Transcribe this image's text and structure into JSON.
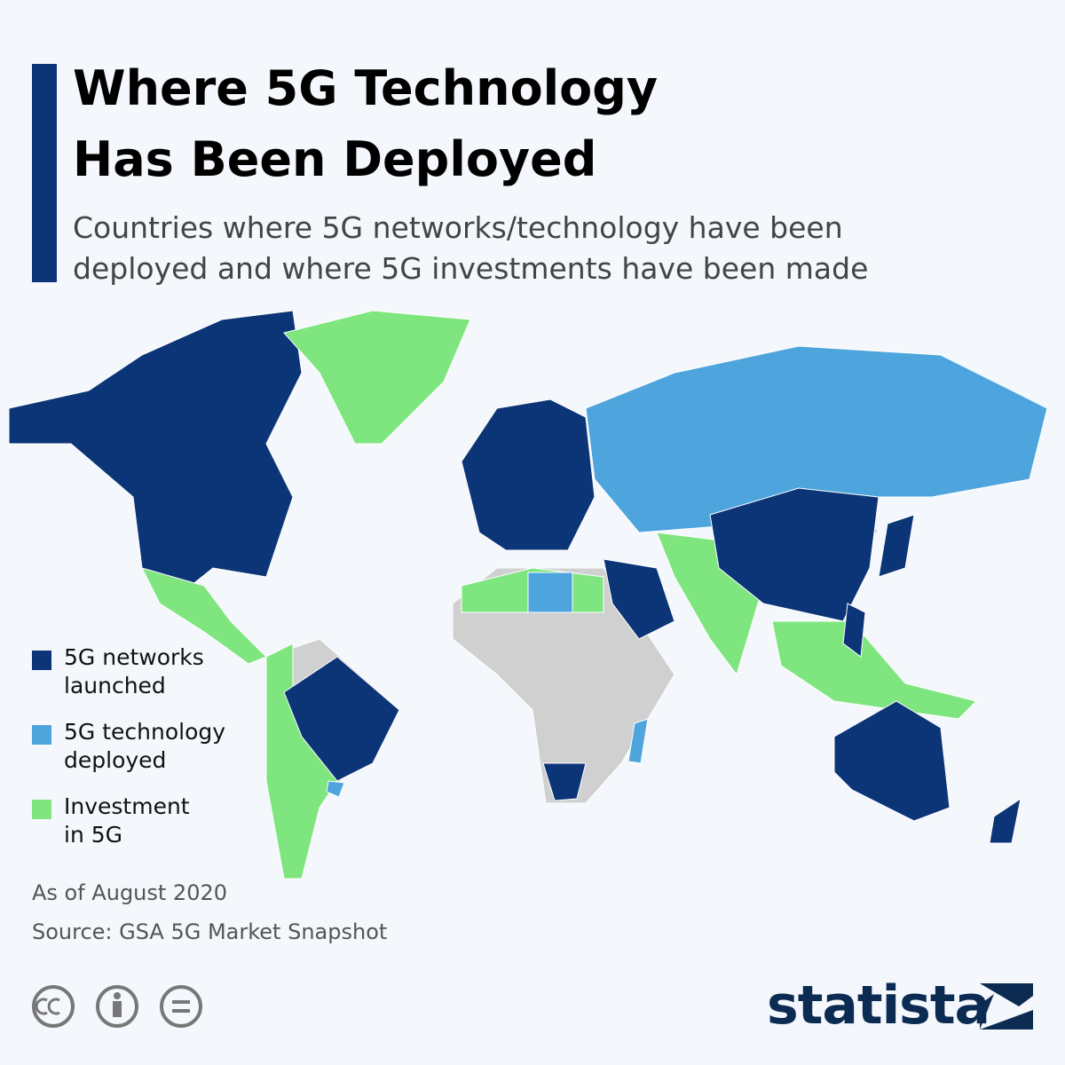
{
  "header": {
    "title_lines": [
      "Where 5G Technology",
      "Has Been Deployed"
    ],
    "subtitle_lines": [
      "Countries where 5G networks/technology have been",
      "deployed and where 5G investments have been made"
    ]
  },
  "legend": [
    {
      "label_lines": [
        "5G networks",
        "launched"
      ],
      "color": "#0c3577"
    },
    {
      "label_lines": [
        "5G technology",
        "deployed"
      ],
      "color": "#4ea4dc"
    },
    {
      "label_lines": [
        "Investment",
        "in 5G"
      ],
      "color": "#7fe57f"
    }
  ],
  "notes": {
    "date": "As of August 2020",
    "source": "Source: GSA 5G Market Snapshot"
  },
  "brand": "statista"
}
